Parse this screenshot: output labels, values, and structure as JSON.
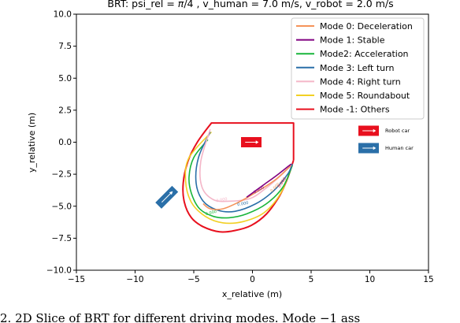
{
  "chart_data": {
    "type": "line",
    "title_parts": [
      "BRT: psi_rel = ",
      "π",
      "/4 , v_human = 7.0 m/s, v_robot = 2.0 m/s"
    ],
    "xlabel": "x_relative (m)",
    "ylabel": "y_relative (m)",
    "xlim": [
      -15,
      15
    ],
    "ylim": [
      -10,
      10
    ],
    "xticks": [
      -15,
      -10,
      -5,
      0,
      5,
      10,
      15
    ],
    "xtick_labels": [
      "−15",
      "−10",
      "−5",
      "0",
      "5",
      "10",
      "15"
    ],
    "yticks": [
      10,
      7.5,
      5,
      2.5,
      0,
      -2.5,
      -5,
      -7.5,
      -10
    ],
    "ytick_labels": [
      "10.0",
      "7.5",
      "5.0",
      "2.5",
      "0.0",
      "−2.5",
      "−5.0",
      "−7.5",
      "−10.0"
    ],
    "grid": false,
    "legend_position": "top-right",
    "series": [
      {
        "name": "Mode 0: Deceleration",
        "color": "#f5935a",
        "x": [
          3.3,
          2.0,
          0.5,
          -1.0,
          -2.5,
          -3.6,
          -4.2
        ],
        "y": [
          -1.8,
          -2.9,
          -3.8,
          -4.6,
          -5.2,
          -5.2,
          -4.8
        ]
      },
      {
        "name": "Mode 1: Stable",
        "color": "#800080",
        "x": [
          -0.5,
          1.0,
          2.2,
          3.3
        ],
        "y": [
          -4.3,
          -3.3,
          -2.5,
          -1.7
        ]
      },
      {
        "name": "Mode2: Acceleration",
        "color": "#18b53a",
        "x": [
          -3.8,
          -5.0,
          -5.4,
          -5.2,
          -4.5,
          -3.3,
          -2.0,
          -0.5,
          1.2,
          2.6,
          3.4
        ],
        "y": [
          0.2,
          -1.2,
          -2.7,
          -4.0,
          -5.2,
          -5.8,
          -5.9,
          -5.6,
          -4.8,
          -3.5,
          -1.8
        ]
      },
      {
        "name": "Mode 3: Left turn",
        "color": "#2a6fa8",
        "x": [
          -3.6,
          -4.6,
          -4.8,
          -4.2,
          -3.0,
          -1.5,
          0.3,
          1.8,
          3.0,
          3.4
        ],
        "y": [
          0.8,
          -1.2,
          -3.2,
          -4.6,
          -5.3,
          -5.4,
          -4.8,
          -3.8,
          -2.5,
          -1.7
        ]
      },
      {
        "name": "Mode 4: Right turn",
        "color": "#f4b6c8",
        "x": [
          -3.6,
          -4.4,
          -4.3,
          -3.3,
          -1.8,
          -0.2,
          1.0,
          2.3,
          3.3
        ],
        "y": [
          1.0,
          -1.5,
          -3.5,
          -4.5,
          -4.6,
          -4.4,
          -3.7,
          -2.7,
          -1.8
        ]
      },
      {
        "name": "Mode 5: Roundabout",
        "color": "#f2d024",
        "x": [
          -3.5,
          -5.4,
          -5.7,
          -5.2,
          -4.0,
          -2.5,
          -0.8,
          1.0,
          2.4,
          3.4
        ],
        "y": [
          0.8,
          -1.2,
          -3.0,
          -4.7,
          -5.8,
          -6.3,
          -6.2,
          -5.5,
          -4.0,
          -1.8
        ]
      },
      {
        "name": "Mode -1: Others",
        "color": "#e8101e",
        "x": [
          3.5,
          3.5,
          -3.5,
          -4.7,
          -5.5,
          -5.9,
          -5.8,
          -5.2,
          -4.2,
          -2.8,
          -1.5,
          -0.1,
          1.2,
          2.3,
          3.0,
          3.5
        ],
        "y": [
          -1.4,
          1.5,
          1.5,
          0.0,
          -1.5,
          -3.2,
          -4.7,
          -5.9,
          -6.6,
          -7.0,
          -6.9,
          -6.5,
          -5.6,
          -4.2,
          -2.8,
          -1.4
        ]
      }
    ],
    "contour_labels": [
      {
        "text": "0.000",
        "x": -2.6,
        "y": -4.6,
        "color": "#f4b6c8",
        "rotate": -10
      },
      {
        "text": "0.000",
        "x": -0.8,
        "y": -4.9,
        "color": "#2a6fa8",
        "rotate": -10
      },
      {
        "text": "0.000",
        "x": -3.5,
        "y": -5.6,
        "color": "#18b53a",
        "rotate": -15
      },
      {
        "text": "0.000",
        "x": 0.6,
        "y": -3.8,
        "color": "#800080",
        "rotate": -30
      },
      {
        "text": "0.000",
        "x": 2.0,
        "y": -3.6,
        "color": "#f5935a",
        "rotate": -45
      },
      {
        "text": "0.000",
        "x": 2.6,
        "y": -3.2,
        "color": "#e8101e",
        "rotate": -55
      }
    ],
    "cars": {
      "robot": {
        "label": "Robot car",
        "color": "#e8101e",
        "x": -0.1,
        "y": 0.0,
        "angle": 0
      },
      "human": {
        "label": "Human car",
        "color": "#2a6fa8",
        "x": -7.3,
        "y": -4.3,
        "angle": -45
      }
    }
  },
  "caption": "2.    2D Slice of BRT for different driving modes. Mode −1 ass"
}
